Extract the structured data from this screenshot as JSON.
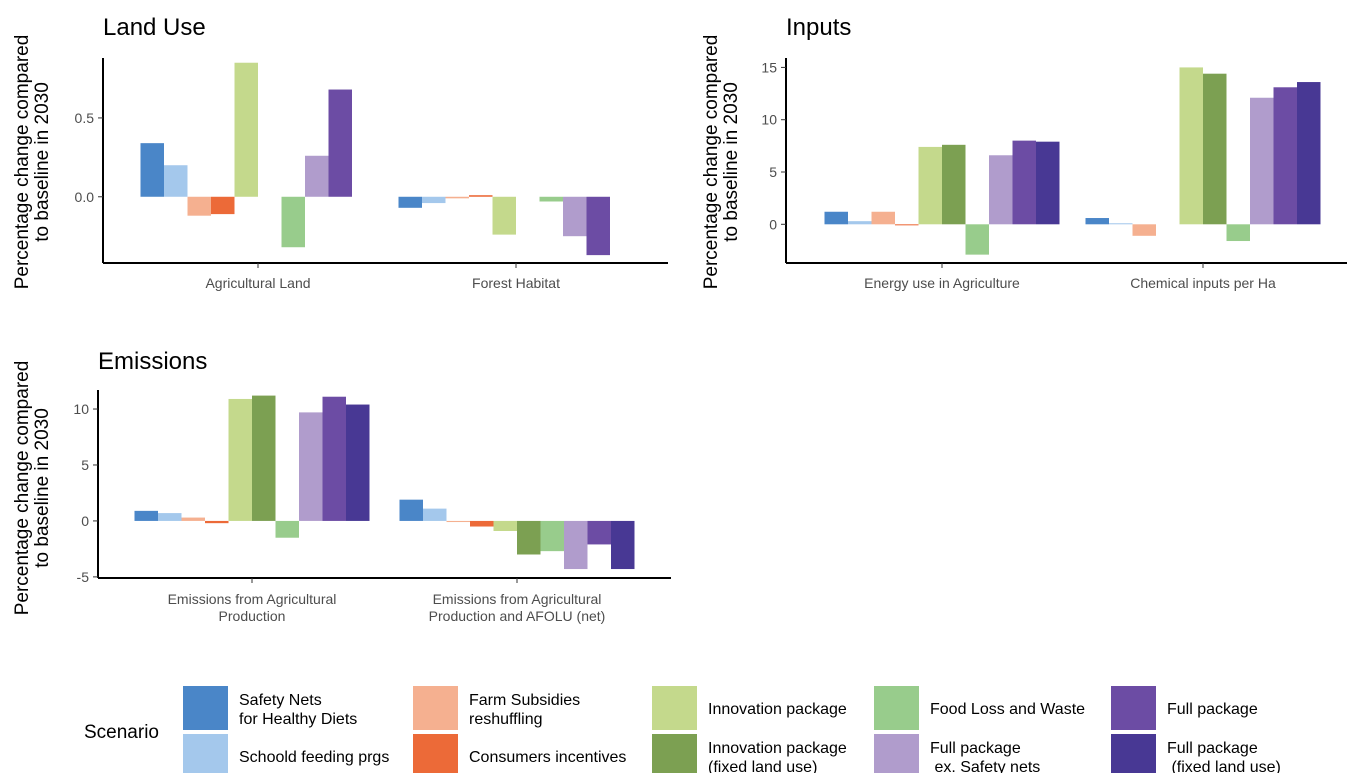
{
  "chart_data": [
    {
      "type": "bar",
      "title": "Land Use",
      "ylabel": "Percentage change compared\nto baseline in 2030",
      "categories": [
        "Agricultural Land",
        "Forest Habitat"
      ],
      "ylim": [
        -0.42,
        0.88
      ],
      "yticks": [
        0.0,
        0.5
      ],
      "ytick_labels": [
        "0.0",
        "0.5"
      ],
      "series": [
        {
          "name": "Safety Nets\nfor Healthy Diets",
          "values": [
            0.34,
            -0.07
          ]
        },
        {
          "name": "Schoold feeding prgs",
          "values": [
            0.2,
            -0.04
          ]
        },
        {
          "name": "Farm Subsidies\nreshuffling",
          "values": [
            -0.12,
            -0.01
          ]
        },
        {
          "name": "Consumers incentives",
          "values": [
            -0.11,
            0.01
          ]
        },
        {
          "name": "Innovation package",
          "values": [
            0.85,
            -0.24
          ]
        },
        {
          "name": "Innovation package\n(fixed land use)",
          "values": [
            0.0,
            0.0
          ]
        },
        {
          "name": "Food Loss and Waste",
          "values": [
            -0.32,
            -0.03
          ]
        },
        {
          "name": "Full package\n ex. Safety nets",
          "values": [
            0.26,
            -0.25
          ]
        },
        {
          "name": "Full package",
          "values": [
            0.68,
            -0.37
          ]
        },
        {
          "name": "Full package\n (fixed land use)",
          "values": [
            0.0,
            0.0
          ]
        }
      ]
    },
    {
      "type": "bar",
      "title": "Inputs",
      "ylabel": "Percentage change compared\nto baseline in 2030",
      "categories": [
        "Energy use in Agriculture",
        "Chemical inputs per Ha"
      ],
      "ylim": [
        -3.7,
        15.9
      ],
      "yticks": [
        0,
        5,
        10,
        15
      ],
      "ytick_labels": [
        "0",
        "5",
        "10",
        "15"
      ],
      "series": [
        {
          "name": "Safety Nets\nfor Healthy Diets",
          "values": [
            1.2,
            0.6
          ]
        },
        {
          "name": "Schoold feeding prgs",
          "values": [
            0.3,
            0.1
          ]
        },
        {
          "name": "Farm Subsidies\nreshuffling",
          "values": [
            1.2,
            -1.1
          ]
        },
        {
          "name": "Consumers incentives",
          "values": [
            -0.1,
            0.0
          ]
        },
        {
          "name": "Innovation package",
          "values": [
            7.4,
            15.0
          ]
        },
        {
          "name": "Innovation package\n(fixed land use)",
          "values": [
            7.6,
            14.4
          ]
        },
        {
          "name": "Food Loss and Waste",
          "values": [
            -2.9,
            -1.6
          ]
        },
        {
          "name": "Full package\n ex. Safety nets",
          "values": [
            6.6,
            12.1
          ]
        },
        {
          "name": "Full package",
          "values": [
            8.0,
            13.1
          ]
        },
        {
          "name": "Full package\n (fixed land use)",
          "values": [
            7.9,
            13.6
          ]
        }
      ]
    },
    {
      "type": "bar",
      "title": "Emissions",
      "ylabel": "Percentage change compared\nto baseline in 2030",
      "categories": [
        "Emissions from Agricultural\nProduction",
        "Emissions from Agricultural\nProduction and AFOLU (net)"
      ],
      "ylim": [
        -5.1,
        11.7
      ],
      "yticks": [
        -5,
        0,
        5,
        10
      ],
      "ytick_labels": [
        "-5",
        "0",
        "5",
        "10"
      ],
      "series": [
        {
          "name": "Safety Nets\nfor Healthy Diets",
          "values": [
            0.9,
            1.9
          ]
        },
        {
          "name": "Schoold feeding prgs",
          "values": [
            0.7,
            1.1
          ]
        },
        {
          "name": "Farm Subsidies\nreshuffling",
          "values": [
            0.3,
            -0.1
          ]
        },
        {
          "name": "Consumers incentives",
          "values": [
            -0.2,
            -0.5
          ]
        },
        {
          "name": "Innovation package",
          "values": [
            10.9,
            -0.9
          ]
        },
        {
          "name": "Innovation package\n(fixed land use)",
          "values": [
            11.2,
            -3.0
          ]
        },
        {
          "name": "Food Loss and Waste",
          "values": [
            -1.5,
            -2.7
          ]
        },
        {
          "name": "Full package\n ex. Safety nets",
          "values": [
            9.7,
            -4.3
          ]
        },
        {
          "name": "Full package",
          "values": [
            11.1,
            -2.1
          ]
        },
        {
          "name": "Full package\n (fixed land use)",
          "values": [
            10.4,
            -4.3
          ]
        }
      ]
    }
  ],
  "legend": {
    "title": "Scenario",
    "placement": "bottom",
    "items": [
      {
        "label": "Safety Nets\nfor Healthy Diets",
        "color": "#4a86c8"
      },
      {
        "label": "Schoold feeding prgs",
        "color": "#a4c8ec"
      },
      {
        "label": "Farm Subsidies\nreshuffling",
        "color": "#f5b090"
      },
      {
        "label": "Consumers incentives",
        "color": "#ec6a38"
      },
      {
        "label": "Innovation package",
        "color": "#c4d98c"
      },
      {
        "label": "Innovation package\n(fixed land use)",
        "color": "#7ca052"
      },
      {
        "label": "Food Loss and Waste",
        "color": "#98cc8c"
      },
      {
        "label": "Full package\n ex. Safety nets",
        "color": "#b09ccc"
      },
      {
        "label": "Full package",
        "color": "#6c4ca4"
      },
      {
        "label": "Full package\n (fixed land use)",
        "color": "#483894"
      }
    ]
  }
}
